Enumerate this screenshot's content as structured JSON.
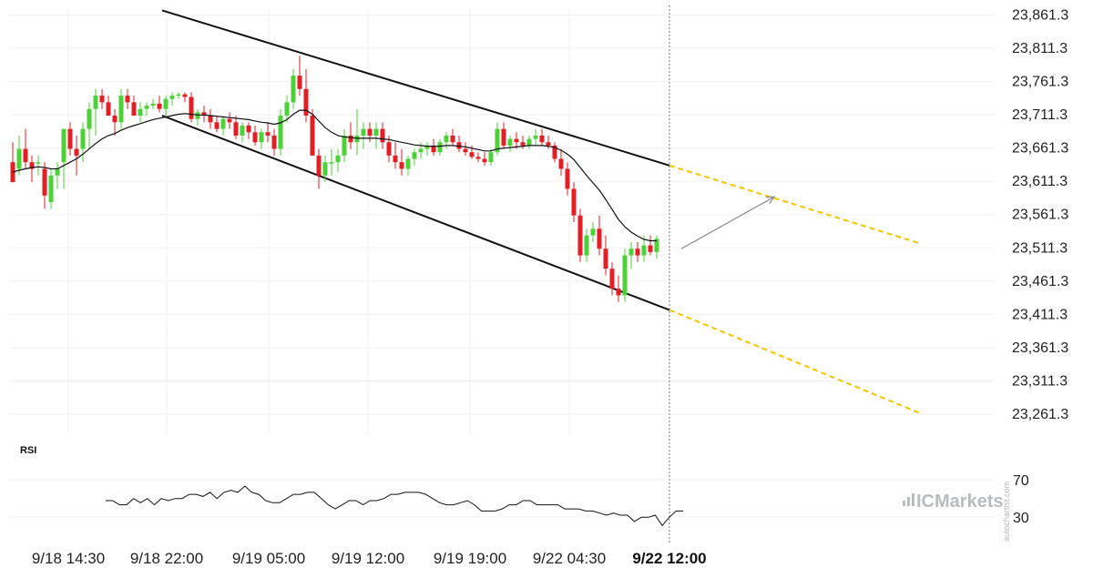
{
  "chart_data": {
    "type": "candlestick",
    "price_axis": {
      "ticks": [
        "23,861.3",
        "23,811.3",
        "23,761.3",
        "23,711.3",
        "23,661.3",
        "23,611.3",
        "23,561.3",
        "23,511.3",
        "23,461.3",
        "23,411.3",
        "23,361.3",
        "23,311.3",
        "23,261.3"
      ],
      "ylim": [
        23230,
        23870
      ]
    },
    "time_axis": {
      "ticks": [
        "9/18 14:30",
        "9/18 22:00",
        "9/19 05:00",
        "9/19 12:00",
        "9/19 19:00",
        "9/22 04:30",
        "9/22 12:00"
      ],
      "current_label": "9/22 12:00"
    },
    "colors": {
      "up": "#4cd137",
      "down": "#e31e24",
      "moving_average": "#111111",
      "channel": "#111111",
      "projection": "#f5c400",
      "arrow": "#888888",
      "cursor": "#777777"
    },
    "candles": [
      [
        23640,
        23670,
        23610,
        23610
      ],
      [
        23630,
        23680,
        23620,
        23660
      ],
      [
        23660,
        23690,
        23630,
        23640
      ],
      [
        23640,
        23650,
        23610,
        23630
      ],
      [
        23640,
        23650,
        23620,
        23640
      ],
      [
        23630,
        23640,
        23570,
        23590
      ],
      [
        23580,
        23630,
        23570,
        23620
      ],
      [
        23620,
        23640,
        23600,
        23630
      ],
      [
        23640,
        23690,
        23600,
        23690
      ],
      [
        23690,
        23700,
        23650,
        23660
      ],
      [
        23660,
        23680,
        23620,
        23650
      ],
      [
        23660,
        23700,
        23640,
        23690
      ],
      [
        23690,
        23730,
        23660,
        23720
      ],
      [
        23720,
        23750,
        23680,
        23740
      ],
      [
        23740,
        23750,
        23720,
        23730
      ],
      [
        23730,
        23740,
        23710,
        23710
      ],
      [
        23710,
        23720,
        23680,
        23700
      ],
      [
        23700,
        23750,
        23690,
        23740
      ],
      [
        23740,
        23750,
        23720,
        23730
      ],
      [
        23730,
        23740,
        23710,
        23710
      ],
      [
        23710,
        23730,
        23700,
        23720
      ],
      [
        23720,
        23730,
        23710,
        23725
      ],
      [
        23725,
        23735,
        23720,
        23728
      ],
      [
        23728,
        23740,
        23715,
        23720
      ],
      [
        23720,
        23740,
        23710,
        23735
      ],
      [
        23735,
        23745,
        23725,
        23740
      ],
      [
        23740,
        23745,
        23735,
        23742
      ],
      [
        23742,
        23745,
        23730,
        23738
      ],
      [
        23738,
        23745,
        23700,
        23705
      ],
      [
        23705,
        23720,
        23695,
        23715
      ],
      [
        23715,
        23725,
        23700,
        23710
      ],
      [
        23710,
        23720,
        23690,
        23700
      ],
      [
        23700,
        23710,
        23685,
        23690
      ],
      [
        23690,
        23710,
        23680,
        23705
      ],
      [
        23705,
        23715,
        23690,
        23700
      ],
      [
        23700,
        23710,
        23675,
        23680
      ],
      [
        23680,
        23700,
        23670,
        23695
      ],
      [
        23695,
        23700,
        23675,
        23685
      ],
      [
        23685,
        23695,
        23665,
        23670
      ],
      [
        23670,
        23690,
        23660,
        23685
      ],
      [
        23685,
        23700,
        23670,
        23680
      ],
      [
        23680,
        23690,
        23650,
        23660
      ],
      [
        23660,
        23720,
        23650,
        23710
      ],
      [
        23710,
        23740,
        23700,
        23730
      ],
      [
        23730,
        23780,
        23720,
        23770
      ],
      [
        23770,
        23800,
        23740,
        23750
      ],
      [
        23750,
        23780,
        23700,
        23710
      ],
      [
        23710,
        23720,
        23650,
        23650
      ],
      [
        23650,
        23660,
        23600,
        23620
      ],
      [
        23620,
        23650,
        23610,
        23640
      ],
      [
        23640,
        23660,
        23620,
        23640
      ],
      [
        23640,
        23660,
        23625,
        23650
      ],
      [
        23650,
        23690,
        23640,
        23680
      ],
      [
        23680,
        23700,
        23660,
        23670
      ],
      [
        23670,
        23720,
        23650,
        23680
      ],
      [
        23680,
        23700,
        23660,
        23690
      ],
      [
        23690,
        23700,
        23670,
        23680
      ],
      [
        23680,
        23700,
        23660,
        23690
      ],
      [
        23690,
        23700,
        23660,
        23670
      ],
      [
        23670,
        23680,
        23640,
        23650
      ],
      [
        23650,
        23670,
        23630,
        23640
      ],
      [
        23640,
        23660,
        23620,
        23630
      ],
      [
        23630,
        23650,
        23620,
        23645
      ],
      [
        23645,
        23660,
        23635,
        23655
      ],
      [
        23655,
        23670,
        23645,
        23660
      ],
      [
        23660,
        23670,
        23650,
        23665
      ],
      [
        23665,
        23675,
        23650,
        23655
      ],
      [
        23655,
        23675,
        23650,
        23670
      ],
      [
        23670,
        23685,
        23660,
        23680
      ],
      [
        23680,
        23690,
        23665,
        23670
      ],
      [
        23670,
        23680,
        23655,
        23660
      ],
      [
        23660,
        23670,
        23650,
        23655
      ],
      [
        23655,
        23665,
        23645,
        23648
      ],
      [
        23648,
        23655,
        23640,
        23645
      ],
      [
        23645,
        23655,
        23635,
        23640
      ],
      [
        23640,
        23660,
        23635,
        23655
      ],
      [
        23655,
        23700,
        23650,
        23690
      ],
      [
        23690,
        23700,
        23660,
        23665
      ],
      [
        23665,
        23680,
        23655,
        23675
      ],
      [
        23675,
        23685,
        23660,
        23670
      ],
      [
        23670,
        23680,
        23660,
        23665
      ],
      [
        23665,
        23680,
        23660,
        23675
      ],
      [
        23675,
        23690,
        23665,
        23680
      ],
      [
        23680,
        23690,
        23665,
        23670
      ],
      [
        23670,
        23680,
        23660,
        23665
      ],
      [
        23665,
        23670,
        23640,
        23645
      ],
      [
        23645,
        23660,
        23620,
        23630
      ],
      [
        23630,
        23640,
        23590,
        23600
      ],
      [
        23600,
        23610,
        23550,
        23560
      ],
      [
        23560,
        23570,
        23490,
        23500
      ],
      [
        23500,
        23540,
        23490,
        23530
      ],
      [
        23530,
        23550,
        23520,
        23540
      ],
      [
        23540,
        23560,
        23500,
        23510
      ],
      [
        23510,
        23530,
        23470,
        23480
      ],
      [
        23480,
        23490,
        23440,
        23450
      ],
      [
        23450,
        23470,
        23430,
        23440
      ],
      [
        23440,
        23510,
        23430,
        23500
      ],
      [
        23500,
        23520,
        23480,
        23510
      ],
      [
        23510,
        23520,
        23490,
        23500
      ],
      [
        23500,
        23530,
        23490,
        23515
      ],
      [
        23515,
        23530,
        23500,
        23505
      ],
      [
        23505,
        23530,
        23495,
        23525
      ]
    ],
    "moving_average": [
      23625,
      23628,
      23630,
      23632,
      23633,
      23632,
      23630,
      23630,
      23635,
      23640,
      23645,
      23652,
      23660,
      23668,
      23675,
      23680,
      23683,
      23688,
      23692,
      23695,
      23698,
      23701,
      23704,
      23706,
      23708,
      23710,
      23712,
      23713,
      23712,
      23711,
      23711,
      23710,
      23709,
      23708,
      23707,
      23706,
      23705,
      23704,
      23702,
      23700,
      23699,
      23697,
      23699,
      23704,
      23712,
      23718,
      23718,
      23712,
      23702,
      23692,
      23685,
      23680,
      23678,
      23677,
      23676,
      23676,
      23676,
      23676,
      23675,
      23674,
      23672,
      23670,
      23668,
      23666,
      23665,
      23664,
      23664,
      23664,
      23665,
      23665,
      23664,
      23663,
      23661,
      23659,
      23657,
      23657,
      23660,
      23661,
      23662,
      23663,
      23664,
      23665,
      23665,
      23665,
      23664,
      23662,
      23658,
      23652,
      23644,
      23632,
      23620,
      23609,
      23598,
      23584,
      23569,
      23554,
      23543,
      23535,
      23529,
      23524,
      23522,
      23522
    ],
    "channel_upper": {
      "start": [
        0,
        23868
      ],
      "end": [
        102,
        23635
      ]
    },
    "channel_lower": {
      "start": [
        0,
        23710
      ],
      "end": [
        102,
        23418
      ]
    },
    "projection_upper": {
      "start": [
        102,
        23635
      ],
      "end": [
        146,
        23518
      ]
    },
    "projection_lower": {
      "start": [
        102,
        23418
      ],
      "end": [
        146,
        23263
      ]
    },
    "forecast_arrow": {
      "start": [
        102,
        23510
      ],
      "end": [
        120,
        23588
      ]
    },
    "rsi": {
      "label": "RSI",
      "ticks": [
        "70",
        "30"
      ],
      "ylim": [
        15,
        85
      ],
      "values": [
        50,
        50,
        46,
        46,
        52,
        48,
        52,
        46,
        52,
        50,
        52,
        52,
        56,
        56,
        54,
        58,
        52,
        58,
        60,
        58,
        64,
        58,
        56,
        50,
        48,
        48,
        52,
        56,
        56,
        58,
        58,
        52,
        46,
        42,
        46,
        50,
        50,
        46,
        50,
        50,
        52,
        56,
        56,
        58,
        58,
        58,
        56,
        52,
        48,
        46,
        46,
        48,
        50,
        46,
        40,
        40,
        40,
        42,
        46,
        46,
        50,
        50,
        46,
        46,
        46,
        46,
        42,
        42,
        42,
        40,
        40,
        38,
        36,
        38,
        36,
        36,
        30,
        34,
        34,
        36,
        26,
        34,
        40,
        40
      ]
    }
  },
  "panel": {
    "rsi_label": "RSI",
    "rsi_ticks": [
      "70",
      "30"
    ]
  },
  "branding": {
    "logo_text": "ICMarkets",
    "watermark": "autochartist.com"
  }
}
